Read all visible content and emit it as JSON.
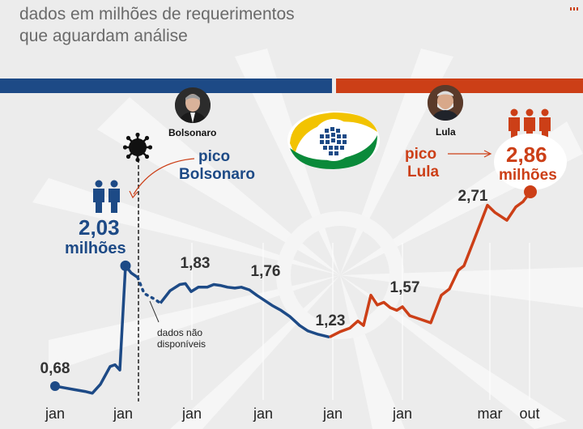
{
  "subtitle_line1": "dados em milhões de requerimentos",
  "subtitle_line2": "que aguardam análise",
  "people": {
    "left_name": "Bolsonaro",
    "right_name": "Lula"
  },
  "annotations": {
    "pico_bolsonaro_1": "pico",
    "pico_bolsonaro_2": "Bolsonaro",
    "pico_lula_1": "pico",
    "pico_lula_2": "Lula",
    "peak_left_value": "2,03",
    "peak_left_unit": "milhões",
    "peak_right_value": "2,86",
    "peak_right_unit": "milhões",
    "missing_1": "dados não",
    "missing_2": "disponíveis"
  },
  "colors": {
    "bolsonaro": "#1d4a86",
    "lula": "#cc3f17",
    "bg": "#ececec"
  },
  "icons": [
    "coronavirus-icon",
    "people-icon",
    "inss-logo"
  ],
  "chart_data": {
    "type": "line",
    "x_tick_labels": [
      "jan",
      "jan",
      "jan",
      "jan",
      "jan",
      "jan",
      "mar",
      "out"
    ],
    "labeled_values": [
      "0,68",
      "1,83",
      "1,76",
      "1,23",
      "1,57",
      "2,71"
    ],
    "series": [
      {
        "values": [
          0.68,
          0.66,
          0.64,
          0.62,
          0.6,
          0.7,
          0.9,
          0.92,
          0.86,
          2.03,
          1.95,
          1.9,
          1.72,
          1.68,
          1.65,
          1.61,
          1.75,
          1.82,
          1.83,
          1.74,
          1.79,
          1.79,
          1.82,
          1.81,
          1.79,
          1.78,
          1.79,
          1.76,
          1.7,
          1.64,
          1.58,
          1.53,
          1.46,
          1.36,
          1.3,
          1.26,
          1.23
        ]
      },
      {
        "values": [
          1.23,
          1.29,
          1.33,
          1.41,
          1.36,
          1.7,
          1.59,
          1.62,
          1.56,
          1.53,
          1.57,
          1.47,
          1.43,
          1.39,
          1.7,
          1.77,
          1.98,
          2.03,
          2.31,
          2.71,
          2.63,
          2.54,
          2.69,
          2.75,
          2.86
        ]
      }
    ]
  }
}
